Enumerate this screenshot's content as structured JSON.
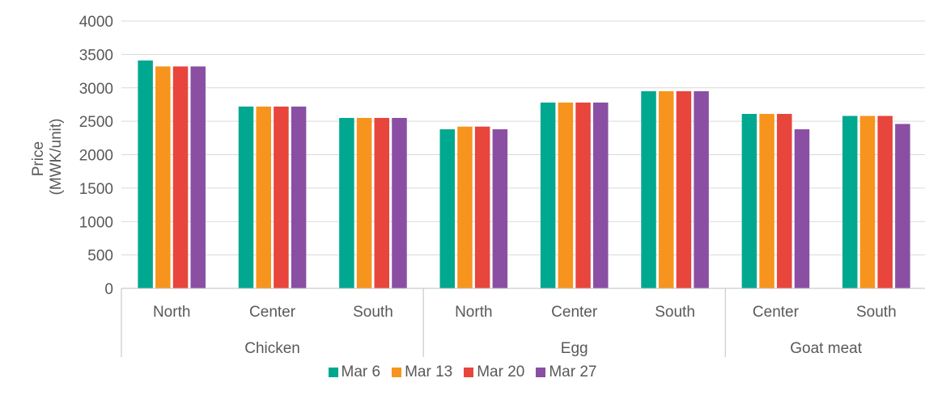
{
  "colors": {
    "text": "#595959",
    "gridline": "#d9d9d9",
    "axis": "#bfbfbf",
    "background": "#ffffff"
  },
  "chart_data": {
    "type": "bar",
    "title": "",
    "xlabel": "",
    "ylabel": "Price (MWK/unit)",
    "ylabel_lines": [
      "Price",
      "(MWK/unit)"
    ],
    "ylim": [
      0,
      4000
    ],
    "yticks": [
      0,
      500,
      1000,
      1500,
      2000,
      2500,
      3000,
      3500,
      4000
    ],
    "grid": true,
    "legend_position": "bottom",
    "groups": [
      {
        "label": "Chicken",
        "categories": [
          "North",
          "Center",
          "South"
        ]
      },
      {
        "label": "Egg",
        "categories": [
          "North",
          "Center",
          "South"
        ]
      },
      {
        "label": "Goat meat",
        "categories": [
          "Center",
          "South"
        ]
      }
    ],
    "series": [
      {
        "name": "Mar 6",
        "color": "#00a88f",
        "values": [
          3410,
          2720,
          2550,
          2380,
          2780,
          2950,
          2610,
          2580
        ]
      },
      {
        "name": "Mar 13",
        "color": "#f7941d",
        "values": [
          3320,
          2720,
          2550,
          2420,
          2780,
          2950,
          2610,
          2580
        ]
      },
      {
        "name": "Mar 20",
        "color": "#e8453c",
        "values": [
          3320,
          2720,
          2550,
          2420,
          2780,
          2950,
          2610,
          2580
        ]
      },
      {
        "name": "Mar 27",
        "color": "#8a4fa3",
        "values": [
          3320,
          2720,
          2550,
          2380,
          2780,
          2950,
          2380,
          2460
        ]
      }
    ]
  }
}
